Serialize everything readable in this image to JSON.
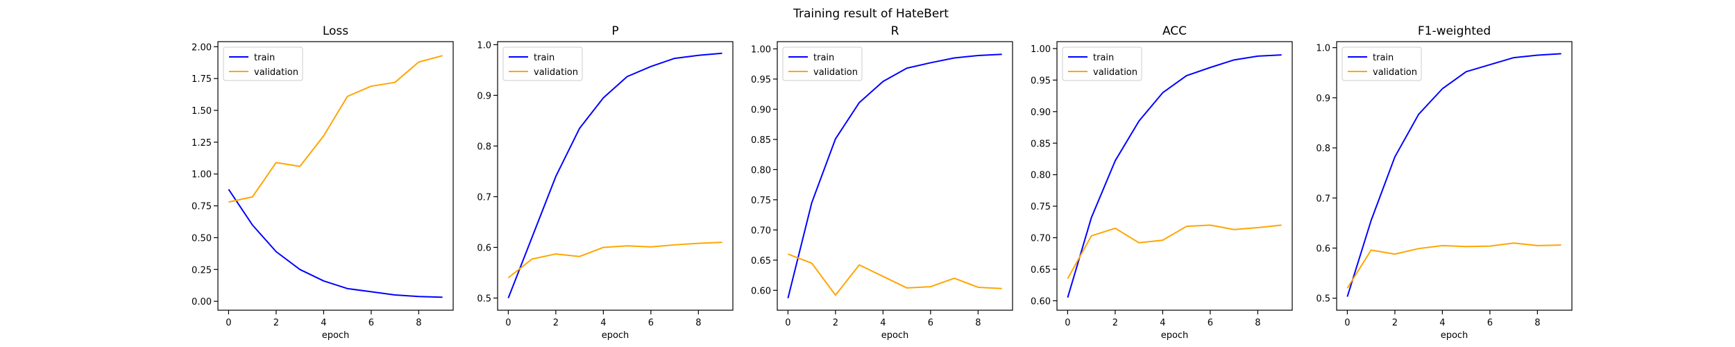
{
  "figure": {
    "title": "Training result of HateBert"
  },
  "chart_data": [
    {
      "type": "line",
      "title": "Loss",
      "xlabel": "epoch",
      "ylabel": "",
      "x": [
        0,
        1,
        2,
        3,
        4,
        5,
        6,
        7,
        8,
        9
      ],
      "xlim": [
        -0.45,
        9.45
      ],
      "ylim": [
        -0.07,
        2.04
      ],
      "xticks": [
        0,
        2,
        4,
        6,
        8
      ],
      "yticks": [
        0.0,
        0.25,
        0.5,
        0.75,
        1.0,
        1.25,
        1.5,
        1.75,
        2.0
      ],
      "ytick_format": 2,
      "legend": "top-left",
      "grid": false,
      "series": [
        {
          "name": "train",
          "color": "#0000ff",
          "values": [
            0.88,
            0.6,
            0.39,
            0.25,
            0.16,
            0.1,
            0.075,
            0.05,
            0.038,
            0.032
          ]
        },
        {
          "name": "validation",
          "color": "#ffa500",
          "values": [
            0.78,
            0.82,
            1.09,
            1.06,
            1.3,
            1.61,
            1.69,
            1.72,
            1.88,
            1.93
          ]
        }
      ]
    },
    {
      "type": "line",
      "title": "P",
      "xlabel": "epoch",
      "ylabel": "",
      "x": [
        0,
        1,
        2,
        3,
        4,
        5,
        6,
        7,
        8,
        9
      ],
      "xlim": [
        -0.45,
        9.45
      ],
      "ylim": [
        0.476,
        1.006
      ],
      "xticks": [
        0,
        2,
        4,
        6,
        8
      ],
      "yticks": [
        0.5,
        0.6,
        0.7,
        0.8,
        0.9,
        1.0
      ],
      "ytick_format": 1,
      "legend": "top-left",
      "grid": false,
      "series": [
        {
          "name": "train",
          "color": "#0000ff",
          "values": [
            0.5,
            0.62,
            0.74,
            0.835,
            0.895,
            0.937,
            0.957,
            0.973,
            0.979,
            0.983
          ]
        },
        {
          "name": "validation",
          "color": "#ffa500",
          "values": [
            0.54,
            0.577,
            0.587,
            0.582,
            0.6,
            0.603,
            0.601,
            0.605,
            0.608,
            0.61
          ]
        }
      ]
    },
    {
      "type": "line",
      "title": "R",
      "xlabel": "epoch",
      "ylabel": "",
      "x": [
        0,
        1,
        2,
        3,
        4,
        5,
        6,
        7,
        8,
        9
      ],
      "xlim": [
        -0.45,
        9.45
      ],
      "ylim": [
        0.567,
        1.012
      ],
      "xticks": [
        0,
        2,
        4,
        6,
        8
      ],
      "yticks": [
        0.6,
        0.65,
        0.7,
        0.75,
        0.8,
        0.85,
        0.9,
        0.95,
        1.0
      ],
      "ytick_format": 2,
      "legend": "top-left",
      "grid": false,
      "series": [
        {
          "name": "train",
          "color": "#0000ff",
          "values": [
            0.587,
            0.745,
            0.851,
            0.911,
            0.946,
            0.968,
            0.977,
            0.985,
            0.989,
            0.991
          ]
        },
        {
          "name": "validation",
          "color": "#ffa500",
          "values": [
            0.66,
            0.645,
            0.592,
            0.642,
            0.623,
            0.604,
            0.606,
            0.62,
            0.605,
            0.603
          ]
        }
      ]
    },
    {
      "type": "line",
      "title": "ACC",
      "xlabel": "epoch",
      "ylabel": "",
      "x": [
        0,
        1,
        2,
        3,
        4,
        5,
        6,
        7,
        8,
        9
      ],
      "xlim": [
        -0.45,
        9.45
      ],
      "ylim": [
        0.585,
        1.011
      ],
      "xticks": [
        0,
        2,
        4,
        6,
        8
      ],
      "yticks": [
        0.6,
        0.65,
        0.7,
        0.75,
        0.8,
        0.85,
        0.9,
        0.95,
        1.0
      ],
      "ytick_format": 2,
      "legend": "top-left",
      "grid": false,
      "series": [
        {
          "name": "train",
          "color": "#0000ff",
          "values": [
            0.605,
            0.732,
            0.822,
            0.885,
            0.93,
            0.957,
            0.97,
            0.982,
            0.988,
            0.99
          ]
        },
        {
          "name": "validation",
          "color": "#ffa500",
          "values": [
            0.635,
            0.703,
            0.715,
            0.692,
            0.696,
            0.718,
            0.72,
            0.713,
            0.716,
            0.72
          ]
        }
      ]
    },
    {
      "type": "line",
      "title": "F1-weighted",
      "xlabel": "epoch",
      "ylabel": "",
      "x": [
        0,
        1,
        2,
        3,
        4,
        5,
        6,
        7,
        8,
        9
      ],
      "xlim": [
        -0.45,
        9.45
      ],
      "ylim": [
        0.476,
        1.012
      ],
      "xticks": [
        0,
        2,
        4,
        6,
        8
      ],
      "yticks": [
        0.5,
        0.6,
        0.7,
        0.8,
        0.9,
        1.0
      ],
      "ytick_format": 1,
      "legend": "top-left",
      "grid": false,
      "series": [
        {
          "name": "train",
          "color": "#0000ff",
          "values": [
            0.503,
            0.655,
            0.782,
            0.867,
            0.918,
            0.952,
            0.966,
            0.98,
            0.985,
            0.988
          ]
        },
        {
          "name": "validation",
          "color": "#ffa500",
          "values": [
            0.52,
            0.596,
            0.588,
            0.599,
            0.605,
            0.603,
            0.604,
            0.61,
            0.605,
            0.606
          ]
        }
      ]
    }
  ]
}
